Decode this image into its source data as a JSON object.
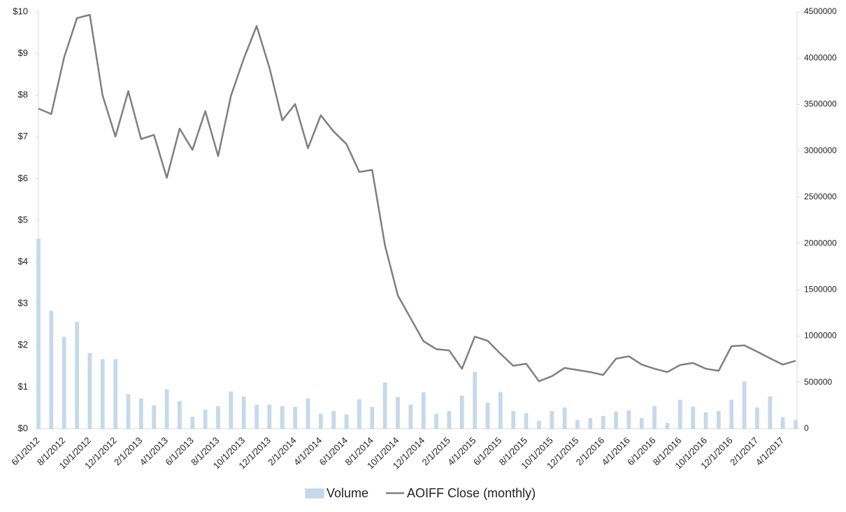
{
  "chart_data": {
    "type": "combo",
    "categories": [
      "6/1/2012",
      null,
      "8/1/2012",
      null,
      "10/1/2012",
      null,
      "12/1/2012",
      null,
      "2/1/2013",
      null,
      "4/1/2013",
      null,
      "6/1/2013",
      null,
      "8/1/2013",
      null,
      "10/1/2013",
      null,
      "12/1/2013",
      null,
      "2/1/2014",
      null,
      "4/1/2014",
      null,
      "6/1/2014",
      null,
      "8/1/2014",
      null,
      "10/1/2014",
      null,
      "12/1/2014",
      null,
      "2/1/2015",
      null,
      "4/1/2015",
      null,
      "6/1/2015",
      null,
      "8/1/2015",
      null,
      "10/1/2015",
      null,
      "12/1/2015",
      null,
      "2/1/2016",
      null,
      "4/1/2016",
      null,
      "6/1/2016",
      null,
      "8/1/2016",
      null,
      "10/1/2016",
      null,
      "12/1/2016",
      null,
      "2/1/2017",
      null,
      "4/1/2017",
      null
    ],
    "series": [
      {
        "name": "Volume",
        "type": "bar",
        "axis": "y2",
        "color": "#c6d9ec",
        "values": [
          2050000,
          1270000,
          990000,
          1150000,
          815000,
          748000,
          748000,
          370000,
          325000,
          250000,
          423000,
          295000,
          128000,
          204000,
          242000,
          400000,
          347000,
          257000,
          257000,
          242000,
          234000,
          325000,
          159000,
          189000,
          151000,
          317000,
          234000,
          498000,
          340000,
          257000,
          393000,
          159000,
          189000,
          355000,
          612000,
          279000,
          393000,
          189000,
          166000,
          83000,
          189000,
          227000,
          91000,
          113000,
          136000,
          181000,
          196000,
          113000,
          242000,
          60000,
          310000,
          234000,
          174000,
          189000,
          310000,
          506000,
          227000,
          347000,
          121000,
          91000
        ]
      },
      {
        "name": "AOIFF Close (monthly)",
        "type": "line",
        "axis": "y",
        "color": "#7f7f7f",
        "values": [
          7.68,
          7.55,
          8.91,
          9.85,
          9.93,
          7.99,
          7.01,
          8.1,
          6.95,
          7.05,
          6.02,
          7.2,
          6.69,
          7.62,
          6.54,
          7.99,
          8.88,
          9.66,
          8.66,
          7.4,
          7.79,
          6.73,
          7.52,
          7.13,
          6.83,
          6.16,
          6.21,
          4.4,
          3.2,
          2.65,
          2.1,
          1.91,
          1.88,
          1.44,
          2.21,
          2.11,
          1.8,
          1.51,
          1.56,
          1.14,
          1.26,
          1.46,
          1.41,
          1.36,
          1.29,
          1.68,
          1.74,
          1.54,
          1.44,
          1.36,
          1.53,
          1.58,
          1.44,
          1.39,
          1.98,
          2.0,
          1.85,
          1.69,
          1.54,
          1.63
        ]
      }
    ],
    "ylim": [
      0,
      10
    ],
    "yticks": [
      {
        "value": 0,
        "label": "$0"
      },
      {
        "value": 1,
        "label": "$1"
      },
      {
        "value": 2,
        "label": "$2"
      },
      {
        "value": 3,
        "label": "$3"
      },
      {
        "value": 4,
        "label": "$4"
      },
      {
        "value": 5,
        "label": "$5"
      },
      {
        "value": 6,
        "label": "$6"
      },
      {
        "value": 7,
        "label": "$7"
      },
      {
        "value": 8,
        "label": "$8"
      },
      {
        "value": 9,
        "label": "$9"
      },
      {
        "value": 10,
        "label": "$10"
      }
    ],
    "y2lim": [
      0,
      4500000
    ],
    "y2ticks": [
      0,
      500000,
      1000000,
      1500000,
      2000000,
      2500000,
      3000000,
      3500000,
      4000000,
      4500000
    ],
    "grid": false,
    "legend": "bottom"
  }
}
